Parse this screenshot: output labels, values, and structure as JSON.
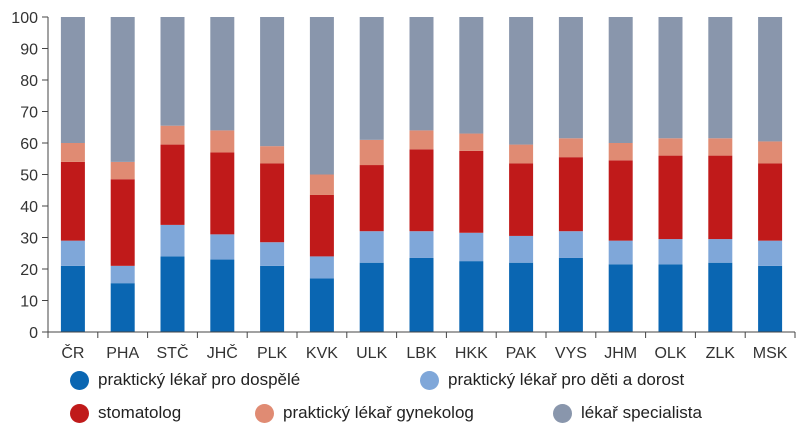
{
  "chart_data": {
    "type": "bar",
    "stacked": true,
    "title": "",
    "xlabel": "",
    "ylabel": "",
    "ylim": [
      0,
      100
    ],
    "yticks": [
      0,
      10,
      20,
      30,
      40,
      50,
      60,
      70,
      80,
      90,
      100
    ],
    "grid": false,
    "legend_position": "bottom",
    "categories": [
      "ČR",
      "PHA",
      "STČ",
      "JHČ",
      "PLK",
      "KVK",
      "ULK",
      "LBK",
      "HKK",
      "PAK",
      "VYS",
      "JHM",
      "OLK",
      "ZLK",
      "MSK"
    ],
    "series": [
      {
        "name": "praktický lékař pro dospělé",
        "color": "#0a66b2",
        "values": [
          21,
          15.5,
          24,
          23,
          21,
          17,
          22,
          23.5,
          22.5,
          22,
          23.5,
          21.5,
          21.5,
          22,
          21
        ]
      },
      {
        "name": "praktický lékař pro děti a dorost",
        "color": "#7fa7d9",
        "values": [
          8,
          5.5,
          10,
          8,
          7.5,
          7,
          10,
          8.5,
          9,
          8.5,
          8.5,
          7.5,
          8,
          7.5,
          8
        ]
      },
      {
        "name": "stomatolog",
        "color": "#c01a1a",
        "values": [
          25,
          27.5,
          25.5,
          26,
          25,
          19.5,
          21,
          26,
          26,
          23,
          23.5,
          25.5,
          26.5,
          26.5,
          24.5
        ]
      },
      {
        "name": "praktický lékař gynekolog",
        "color": "#e08b73",
        "values": [
          6,
          5.5,
          6,
          7,
          5.5,
          6.5,
          8,
          6,
          5.5,
          6,
          6,
          5.5,
          5.5,
          5.5,
          7
        ]
      },
      {
        "name": "lékař specialista",
        "color": "#8996ac",
        "values": [
          40,
          46,
          34.5,
          36,
          41,
          50,
          39,
          36,
          37,
          40.5,
          38.5,
          40,
          38.5,
          38.5,
          39.5
        ]
      }
    ]
  }
}
